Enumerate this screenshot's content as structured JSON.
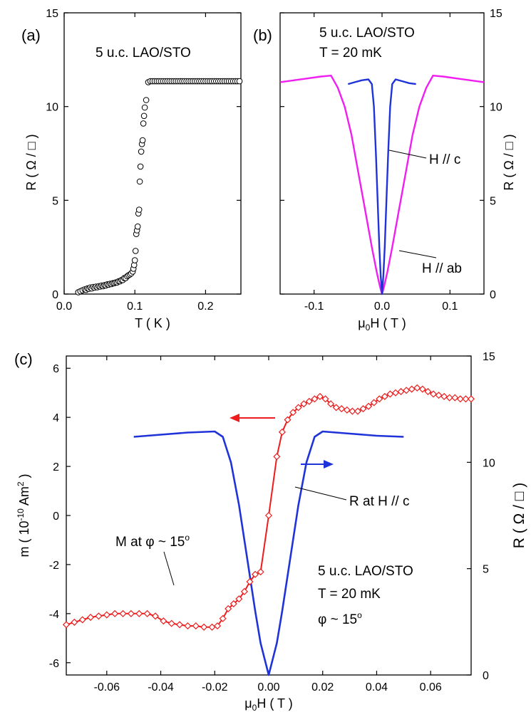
{
  "panels": {
    "a": {
      "panel_label": "(a)",
      "sample_label": "5 u.c. LAO/STO",
      "xlabel": "T ( K )",
      "ylabel": "R ( Ω / □ )"
    },
    "b": {
      "panel_label": "(b)",
      "sample_label": "5 u.c. LAO/STO",
      "temp_label": "T = 20 mK",
      "xlabel": "μ0H ( T )",
      "ylabel": "R ( Ω / □ )",
      "annot_c": "H // c",
      "annot_ab": "H // ab"
    },
    "c": {
      "panel_label": "(c)",
      "xlabel": "μ0H ( T )",
      "ylabel_left": "m ( 10-10 Am2 )",
      "ylabel_right": "R ( Ω / □ )",
      "annot_r": "R at H // c",
      "annot_m": "M at φ ~ 15o",
      "sample_label": "5 u.c. LAO/STO",
      "temp_label": "T = 20 mK",
      "phi_label": "φ ~ 15o"
    }
  },
  "colors": {
    "blue": "#1f33d9",
    "magenta": "#f01ef0",
    "red": "#ee1c1c",
    "black": "#000000"
  },
  "chart_data": [
    {
      "id": "a",
      "type": "scatter",
      "xlim": [
        0,
        0.25
      ],
      "ylim": [
        0,
        15
      ],
      "xticks": [
        0.0,
        0.1,
        0.2
      ],
      "xtick_labels": [
        "0.0",
        "0.1",
        "0.2"
      ],
      "yticks": [
        0,
        5,
        10,
        15
      ],
      "ytick_labels": [
        "0",
        "5",
        "10",
        "15"
      ],
      "series": [
        {
          "marker": "open-circle",
          "x": [
            0.02,
            0.023,
            0.026,
            0.029,
            0.031,
            0.033,
            0.035,
            0.037,
            0.039,
            0.041,
            0.043,
            0.045,
            0.047,
            0.049,
            0.051,
            0.053,
            0.055,
            0.057,
            0.059,
            0.061,
            0.063,
            0.065,
            0.067,
            0.069,
            0.071,
            0.073,
            0.075,
            0.077,
            0.079,
            0.081,
            0.083,
            0.085,
            0.087,
            0.089,
            0.091,
            0.093,
            0.095,
            0.097,
            0.098,
            0.099,
            0.1,
            0.101,
            0.102,
            0.103,
            0.104,
            0.105,
            0.106,
            0.107,
            0.108,
            0.109,
            0.11,
            0.111,
            0.112,
            0.113,
            0.114,
            0.116,
            0.119,
            0.122,
            0.125,
            0.128,
            0.131,
            0.134,
            0.137,
            0.14,
            0.143,
            0.146,
            0.149,
            0.152,
            0.155,
            0.158,
            0.161,
            0.164,
            0.167,
            0.17,
            0.173,
            0.176,
            0.179,
            0.182,
            0.185,
            0.188,
            0.191,
            0.194,
            0.197,
            0.2,
            0.203,
            0.206,
            0.209,
            0.212,
            0.215,
            0.218,
            0.221,
            0.224,
            0.227,
            0.23,
            0.233,
            0.236,
            0.239,
            0.242,
            0.245,
            0.248
          ],
          "y": [
            0.1,
            0.15,
            0.2,
            0.25,
            0.22,
            0.3,
            0.28,
            0.35,
            0.3,
            0.38,
            0.34,
            0.4,
            0.36,
            0.42,
            0.4,
            0.45,
            0.42,
            0.48,
            0.46,
            0.52,
            0.5,
            0.55,
            0.53,
            0.58,
            0.58,
            0.62,
            0.62,
            0.68,
            0.68,
            0.75,
            0.75,
            0.85,
            0.85,
            0.95,
            1.0,
            1.05,
            1.1,
            1.2,
            1.35,
            1.55,
            1.8,
            2.3,
            3.2,
            3.4,
            3.6,
            4.3,
            4.5,
            6.0,
            6.8,
            7.6,
            8.0,
            8.2,
            9.1,
            9.5,
            9.95,
            10.35,
            11.3,
            11.35,
            11.35,
            11.35,
            11.35,
            11.35,
            11.35,
            11.35,
            11.35,
            11.35,
            11.35,
            11.35,
            11.35,
            11.35,
            11.35,
            11.35,
            11.35,
            11.35,
            11.35,
            11.35,
            11.35,
            11.35,
            11.35,
            11.35,
            11.35,
            11.35,
            11.35,
            11.35,
            11.35,
            11.35,
            11.35,
            11.35,
            11.35,
            11.35,
            11.35,
            11.35,
            11.35,
            11.35,
            11.35,
            11.35,
            11.35,
            11.35,
            11.35,
            11.35
          ]
        }
      ]
    },
    {
      "id": "b",
      "type": "line",
      "xlim": [
        -0.15,
        0.15
      ],
      "ylim": [
        0,
        15
      ],
      "xticks": [
        -0.1,
        0.0,
        0.1
      ],
      "xtick_labels": [
        "-0.1",
        "0.0",
        "0.1"
      ],
      "yticks": [
        0,
        5,
        10,
        15
      ],
      "ytick_labels": [
        "0",
        "5",
        "10",
        "15"
      ],
      "y_axis_side": "right",
      "series": [
        {
          "name": "H // ab",
          "color": "magenta",
          "x": [
            -0.15,
            -0.13,
            -0.11,
            -0.09,
            -0.075,
            -0.065,
            -0.055,
            -0.045,
            -0.035,
            -0.025,
            -0.015,
            -0.008,
            -0.003,
            0.0,
            0.003,
            0.008,
            0.015,
            0.025,
            0.035,
            0.045,
            0.055,
            0.065,
            0.075,
            0.09,
            0.11,
            0.13,
            0.15
          ],
          "y": [
            11.3,
            11.4,
            11.5,
            11.6,
            11.65,
            11.0,
            10.0,
            8.5,
            6.5,
            4.5,
            2.5,
            1.2,
            0.4,
            0.0,
            0.4,
            1.2,
            2.5,
            4.5,
            6.5,
            8.5,
            10.0,
            11.0,
            11.65,
            11.6,
            11.5,
            11.4,
            11.3
          ]
        },
        {
          "name": "H // c",
          "color": "blue",
          "x": [
            -0.05,
            -0.04,
            -0.03,
            -0.02,
            -0.015,
            -0.012,
            -0.009,
            -0.006,
            -0.004,
            -0.002,
            0.0,
            0.002,
            0.004,
            0.006,
            0.009,
            0.012,
            0.015,
            0.02,
            0.03,
            0.04,
            0.05
          ],
          "y": [
            11.2,
            11.3,
            11.4,
            11.45,
            11.2,
            10.0,
            7.5,
            4.5,
            2.5,
            1.0,
            0.0,
            1.0,
            2.5,
            4.5,
            7.5,
            10.0,
            11.2,
            11.45,
            11.35,
            11.25,
            11.2
          ]
        }
      ]
    },
    {
      "id": "c",
      "type": "line",
      "xlim": [
        -0.075,
        0.075
      ],
      "ylim_left": [
        -6.5,
        6.5
      ],
      "ylim_right": [
        0,
        15
      ],
      "xticks": [
        -0.06,
        -0.04,
        -0.02,
        0.0,
        0.02,
        0.04,
        0.06
      ],
      "xtick_labels": [
        "-0.06",
        "-0.04",
        "-0.02",
        "0.00",
        "0.02",
        "0.04",
        "0.06"
      ],
      "yticks_left": [
        -6,
        -4,
        -2,
        0,
        2,
        4,
        6
      ],
      "ytick_labels_left": [
        "-6",
        "-4",
        "-2",
        "0",
        "2",
        "4",
        "6"
      ],
      "yticks_right": [
        0,
        5,
        10,
        15
      ],
      "ytick_labels_right": [
        "0",
        "5",
        "10",
        "15"
      ],
      "series": [
        {
          "name": "M at φ ~ 15°",
          "axis": "left",
          "color": "red",
          "marker": "open-diamond",
          "x": [
            -0.075,
            -0.072,
            -0.069,
            -0.066,
            -0.063,
            -0.06,
            -0.057,
            -0.054,
            -0.051,
            -0.048,
            -0.045,
            -0.042,
            -0.039,
            -0.036,
            -0.033,
            -0.03,
            -0.027,
            -0.024,
            -0.021,
            -0.019,
            -0.017,
            -0.015,
            -0.013,
            -0.011,
            -0.009,
            -0.007,
            -0.005,
            -0.003,
            0.0,
            0.003,
            0.005,
            0.007,
            0.009,
            0.011,
            0.013,
            0.015,
            0.017,
            0.019,
            0.021,
            0.023,
            0.025,
            0.027,
            0.029,
            0.031,
            0.033,
            0.035,
            0.037,
            0.039,
            0.041,
            0.043,
            0.045,
            0.047,
            0.049,
            0.051,
            0.053,
            0.055,
            0.057,
            0.059,
            0.061,
            0.063,
            0.065,
            0.067,
            0.069,
            0.071,
            0.073,
            0.075
          ],
          "y": [
            -4.45,
            -4.35,
            -4.25,
            -4.15,
            -4.1,
            -4.05,
            -4.0,
            -4.0,
            -4.0,
            -4.0,
            -4.0,
            -4.1,
            -4.3,
            -4.4,
            -4.45,
            -4.5,
            -4.5,
            -4.55,
            -4.55,
            -4.5,
            -4.2,
            -3.8,
            -3.6,
            -3.4,
            -3.1,
            -2.7,
            -2.4,
            -2.3,
            0.0,
            2.4,
            3.4,
            3.9,
            4.2,
            4.4,
            4.55,
            4.65,
            4.75,
            4.85,
            4.75,
            4.55,
            4.4,
            4.35,
            4.3,
            4.25,
            4.25,
            4.35,
            4.45,
            4.6,
            4.75,
            4.85,
            4.95,
            5.0,
            5.05,
            5.1,
            5.15,
            5.2,
            5.15,
            5.05,
            4.95,
            4.9,
            4.85,
            4.8,
            4.8,
            4.75,
            4.75,
            4.75
          ]
        },
        {
          "name": "R at H // c",
          "axis": "right",
          "color": "blue",
          "x": [
            -0.05,
            -0.04,
            -0.03,
            -0.02,
            -0.017,
            -0.014,
            -0.011,
            -0.008,
            -0.005,
            -0.003,
            -0.001,
            0.0,
            0.001,
            0.003,
            0.005,
            0.008,
            0.011,
            0.014,
            0.017,
            0.02,
            0.03,
            0.04,
            0.05
          ],
          "y": [
            11.2,
            11.3,
            11.4,
            11.45,
            11.2,
            10.0,
            8.0,
            5.5,
            3.0,
            1.5,
            0.5,
            0.0,
            0.5,
            1.5,
            3.0,
            5.5,
            8.0,
            10.0,
            11.2,
            11.45,
            11.35,
            11.25,
            11.2
          ]
        }
      ]
    }
  ]
}
